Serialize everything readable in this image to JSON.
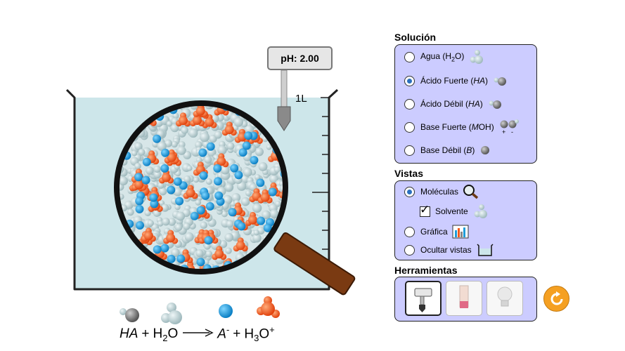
{
  "ph_meter": {
    "reading": "pH: 2.00"
  },
  "beaker": {
    "volume_label": "1L"
  },
  "equation": {
    "reactant1": "HA",
    "plus1": "+",
    "reactant2": "H",
    "reactant2_sub": "2",
    "reactant2_tail": "O",
    "product1": "A",
    "product1_sup": "-",
    "plus2": "+",
    "product2": "H",
    "product2_sub": "3",
    "product2_tail": "O",
    "product2_sup": "+"
  },
  "solution_panel": {
    "title": "Solución",
    "selected": "strong-acid",
    "options": [
      {
        "id": "water",
        "label": "Agua (H",
        "sub": "2",
        "tail": "O)",
        "icon": "water-molecule-icon"
      },
      {
        "id": "strong-acid",
        "label": "Ácido Fuerte (",
        "italic": "HA",
        "tail": ")",
        "icon": "ha-molecule-icon"
      },
      {
        "id": "weak-acid",
        "label": "Ácido Débil (",
        "italic": "HA",
        "tail": ")",
        "icon": "ha-molecule-icon"
      },
      {
        "id": "strong-base",
        "label": "Base Fuerte (",
        "italic": "M",
        "tail": "OH)",
        "icon": "moh-molecule-icon"
      },
      {
        "id": "weak-base",
        "label": "Base Débil (",
        "italic": "B",
        "tail": ")",
        "icon": "b-molecule-icon"
      }
    ]
  },
  "views_panel": {
    "title": "Vistas",
    "molecules_label": "Moléculas",
    "solvent_label": "Solvente",
    "graph_label": "Gráfica",
    "hide_label": "Ocultar vistas",
    "selected": "molecules",
    "solvent_checked": true
  },
  "tools_panel": {
    "title": "Herramientas",
    "tools": [
      "ph-meter-tool",
      "ph-paper-tool",
      "conductivity-tool"
    ],
    "selected": "ph-meter-tool"
  },
  "colors": {
    "panel_bg": "#ccccff",
    "water": "#cde6ea",
    "hydronium": "#f25a1c",
    "anion": "#1f9cd8",
    "reset": "#f5a022"
  }
}
